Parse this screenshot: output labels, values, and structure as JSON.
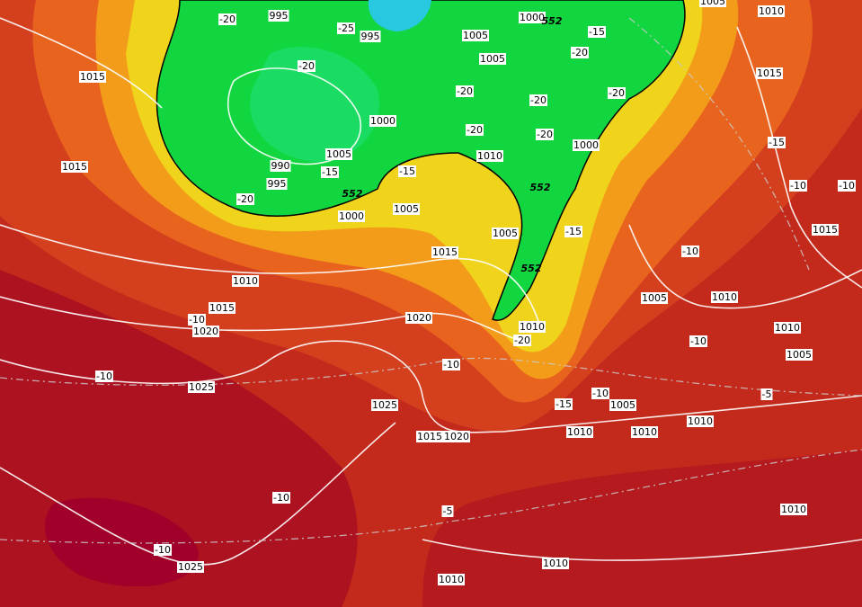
{
  "map": {
    "pressure_labels": [
      "995",
      "995",
      "1005",
      "1005",
      "1000",
      "1005",
      "1010",
      "1015",
      "1015",
      "1000",
      "1005",
      "990",
      "995",
      "1000",
      "1005",
      "1000",
      "1010",
      "1015",
      "1005",
      "1015",
      "1015",
      "1010",
      "1015",
      "1020",
      "1020",
      "1005",
      "1010",
      "1010",
      "1010",
      "1005",
      "1025",
      "1025",
      "1005",
      "1010",
      "1010",
      "1010",
      "1015",
      "1020",
      "1010",
      "1025",
      "1010",
      "1010"
    ],
    "temperature_labels": [
      "-20",
      "-25",
      "-20",
      "-20",
      "-15",
      "-20",
      "-20",
      "-20",
      "-20",
      "-20",
      "-15",
      "-15",
      "-20",
      "-15",
      "-10",
      "-10",
      "-15",
      "-10",
      "-10",
      "-20",
      "-10",
      "-10",
      "-10",
      "-15",
      "-10",
      "-5",
      "-10",
      "-5",
      "-10"
    ],
    "thickness_labels": [
      "552",
      "552",
      "552",
      "552"
    ]
  }
}
